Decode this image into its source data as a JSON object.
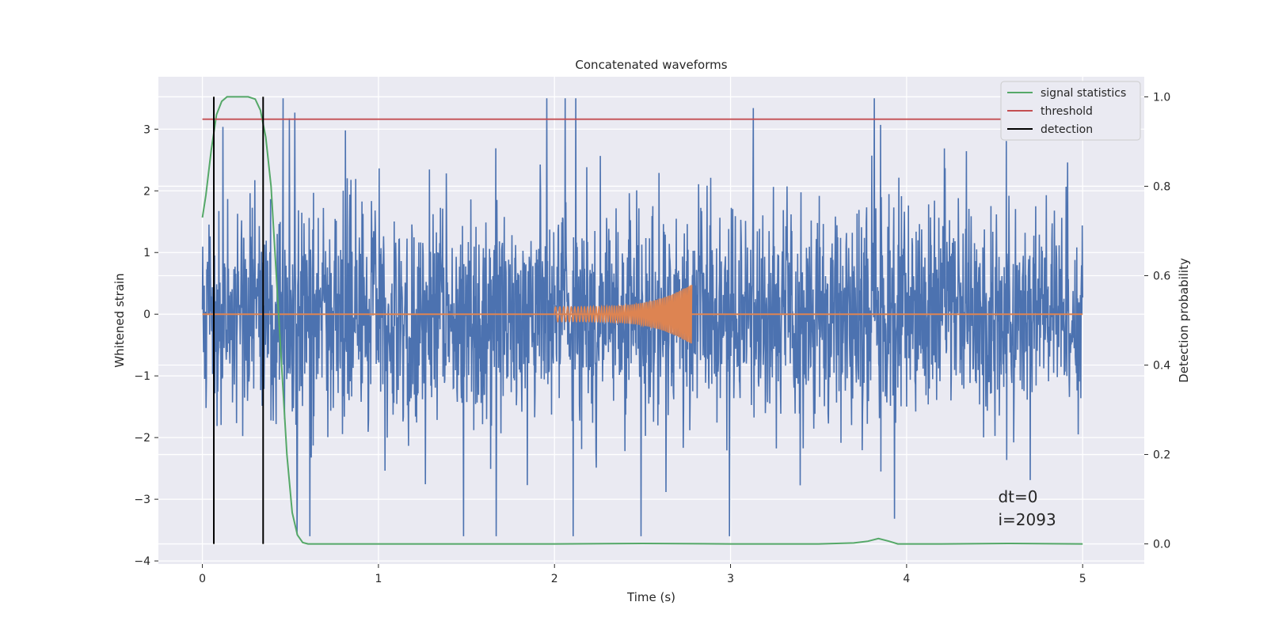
{
  "chart_data": {
    "type": "line",
    "title": "Concatenated waveforms",
    "xlabel": "Time (s)",
    "ylabel_left": "Whitened strain",
    "ylabel_right": "Detection probability",
    "xlim": [
      -0.25,
      5.35
    ],
    "ylim_left": [
      -4.05,
      3.85
    ],
    "ylim_right": [
      -0.045,
      1.045
    ],
    "xticks": [
      0,
      1,
      2,
      3,
      4,
      5
    ],
    "xtick_labels": [
      "0",
      "1",
      "2",
      "3",
      "4",
      "5"
    ],
    "yticks_left": [
      -4,
      -3,
      -2,
      -1,
      0,
      1,
      2,
      3
    ],
    "ytick_labels_left": [
      "−4",
      "−3",
      "−2",
      "−1",
      "0",
      "1",
      "2",
      "3"
    ],
    "yticks_right": [
      0.0,
      0.2,
      0.4,
      0.6,
      0.8,
      1.0
    ],
    "ytick_labels_right": [
      "0.0",
      "0.2",
      "0.4",
      "0.6",
      "0.8",
      "1.0"
    ],
    "grid": true,
    "legend_position": "top-right",
    "colors": {
      "background": "#eaeaf2",
      "grid": "#ffffff",
      "strain": "#4c72b0",
      "template": "#dd8452",
      "statistics": "#55a868",
      "threshold": "#c44e52",
      "detection": "#000000"
    },
    "series": [
      {
        "name": "",
        "axis": "left",
        "kind": "noise",
        "x_range": [
          0,
          5
        ],
        "typical_amplitude": 0.85,
        "peak_range": [
          -3.6,
          3.5
        ]
      },
      {
        "name": "",
        "axis": "left",
        "kind": "chirp",
        "x_range": [
          2.0,
          2.78
        ],
        "peak_amplitude": 0.5,
        "baseline": 0
      },
      {
        "name": "signal statistics",
        "axis": "right",
        "x": [
          0,
          0.02,
          0.05,
          0.08,
          0.11,
          0.14,
          0.18,
          0.22,
          0.26,
          0.3,
          0.33,
          0.36,
          0.39,
          0.42,
          0.45,
          0.48,
          0.51,
          0.54,
          0.57,
          0.6,
          1.0,
          1.5,
          2.0,
          2.5,
          3.0,
          3.5,
          3.7,
          3.78,
          3.84,
          3.9,
          3.95,
          4.2,
          4.6,
          5.0
        ],
        "y": [
          0.73,
          0.78,
          0.88,
          0.96,
          0.99,
          1.0,
          1.0,
          1.0,
          1.0,
          0.995,
          0.97,
          0.91,
          0.8,
          0.6,
          0.4,
          0.2,
          0.07,
          0.02,
          0.003,
          0.0,
          0.0,
          0.0,
          0.0,
          0.001,
          0.0,
          0.0,
          0.002,
          0.006,
          0.012,
          0.006,
          0.0,
          0.0,
          0.001,
          0.0
        ]
      },
      {
        "name": "threshold",
        "axis": "right",
        "x": [
          0,
          5
        ],
        "y": [
          0.95,
          0.95
        ]
      },
      {
        "name": "detection",
        "axis": "right",
        "kind": "vlines",
        "x": [
          0.065,
          0.345
        ],
        "ymin": 0,
        "ymax": 1.0
      }
    ],
    "annotations": [
      "dt=0",
      "i=2093"
    ]
  }
}
